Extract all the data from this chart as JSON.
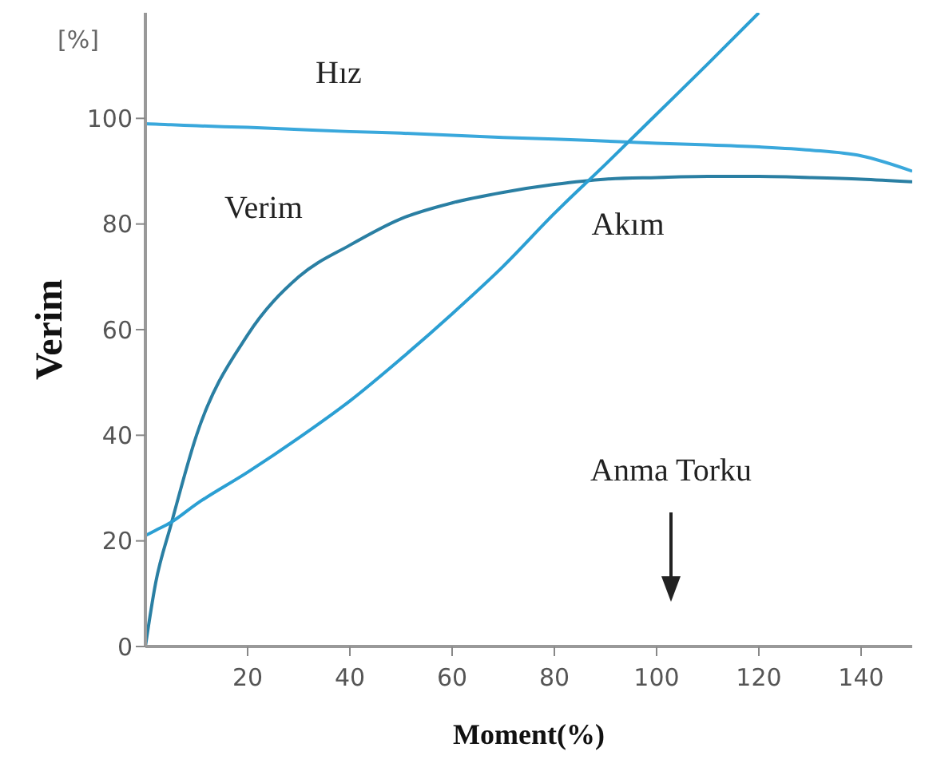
{
  "chart_data": {
    "type": "line",
    "ylabel": "Verim",
    "xlabel": "Moment(%)",
    "x": [
      0,
      2,
      5,
      10,
      20,
      30,
      40,
      50,
      60,
      70,
      80,
      90,
      100,
      110,
      120,
      130,
      140,
      150
    ],
    "series": [
      {
        "name": "Hız",
        "color": "#3aa8dc",
        "values": [
          99,
          98.9,
          98.8,
          98.6,
          98.3,
          97.9,
          97.5,
          97.2,
          96.8,
          96.4,
          96.1,
          95.7,
          95.3,
          95,
          94.6,
          94,
          92.9,
          90
        ]
      },
      {
        "name": "Verim",
        "color": "#2a7fa3",
        "values": [
          0,
          12,
          23,
          40,
          59,
          70,
          76,
          81,
          84,
          86,
          87.5,
          88.5,
          88.8,
          89,
          89,
          88.8,
          88.5,
          88
        ]
      },
      {
        "name": "Akım",
        "color": "#2b9fd3",
        "values": [
          21,
          22,
          23.5,
          27,
          33,
          39.5,
          46.5,
          54.5,
          63,
          72,
          82,
          91.3,
          100.8,
          110.3,
          120,
          null,
          null,
          null
        ]
      }
    ],
    "xlim": [
      0,
      150
    ],
    "ylim": [
      0,
      120
    ],
    "xticks": [
      20,
      40,
      60,
      80,
      100,
      120,
      140
    ],
    "yticks": [
      0,
      20,
      40,
      60,
      80,
      100
    ],
    "grid": false,
    "legend": false,
    "marker": "none",
    "line_style": "solid",
    "annotations": [
      "[%]",
      "Anma Torku"
    ]
  }
}
